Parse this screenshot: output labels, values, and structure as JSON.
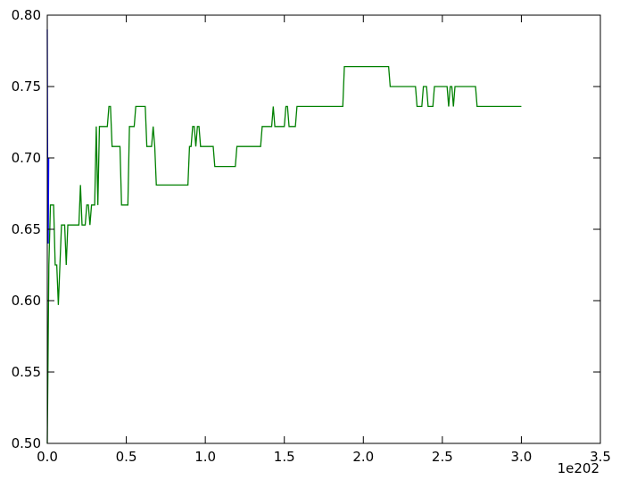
{
  "chart_data": {
    "type": "line",
    "title": "",
    "xlabel": "",
    "ylabel": "",
    "x_offset_label": "1e202",
    "xlim": [
      0.0,
      3.5
    ],
    "ylim": [
      0.5,
      0.8
    ],
    "x_ticks": [
      0.0,
      0.5,
      1.0,
      1.5,
      2.0,
      2.5,
      3.0,
      3.5
    ],
    "y_ticks": [
      0.5,
      0.55,
      0.6,
      0.65,
      0.7,
      0.75,
      0.8
    ],
    "x_tick_labels": [
      "0.0",
      "0.5",
      "1.0",
      "1.5",
      "2.0",
      "2.5",
      "3.0",
      "3.5"
    ],
    "y_tick_labels": [
      "0.50",
      "0.55",
      "0.60",
      "0.65",
      "0.70",
      "0.75",
      "0.80"
    ],
    "grid": false,
    "legend": "none",
    "series": [
      {
        "color": "#0000ff",
        "x": [
          0.0,
          0.003,
          0.006,
          0.009
        ],
        "y": [
          0.79,
          0.66,
          0.64,
          0.7
        ]
      },
      {
        "color": "#008000",
        "x": [
          0.0,
          0.01,
          0.02,
          0.03,
          0.04,
          0.05,
          0.06,
          0.07,
          0.08,
          0.09,
          0.1,
          0.11,
          0.12,
          0.13,
          0.14,
          0.15,
          0.2,
          0.21,
          0.22,
          0.23,
          0.24,
          0.25,
          0.26,
          0.27,
          0.28,
          0.29,
          0.3,
          0.31,
          0.32,
          0.33,
          0.34,
          0.35,
          0.38,
          0.39,
          0.4,
          0.41,
          0.42,
          0.46,
          0.47,
          0.51,
          0.52,
          0.55,
          0.56,
          0.62,
          0.63,
          0.66,
          0.67,
          0.68,
          0.69,
          0.89,
          0.9,
          0.91,
          0.92,
          0.93,
          0.94,
          0.95,
          0.96,
          0.97,
          1.05,
          1.06,
          1.19,
          1.2,
          1.35,
          1.36,
          1.41,
          1.42,
          1.43,
          1.44,
          1.5,
          1.51,
          1.52,
          1.53,
          1.57,
          1.58,
          1.87,
          1.88,
          2.16,
          2.17,
          2.33,
          2.34,
          2.37,
          2.38,
          2.4,
          2.41,
          2.44,
          2.45,
          2.53,
          2.54,
          2.55,
          2.56,
          2.57,
          2.58,
          2.6,
          2.61,
          2.71,
          2.72,
          3.0
        ],
        "y": [
          0.5,
          0.625,
          0.667,
          0.667,
          0.667,
          0.625,
          0.625,
          0.597,
          0.625,
          0.653,
          0.653,
          0.653,
          0.625,
          0.653,
          0.653,
          0.653,
          0.653,
          0.681,
          0.653,
          0.653,
          0.653,
          0.667,
          0.667,
          0.653,
          0.667,
          0.667,
          0.667,
          0.722,
          0.667,
          0.722,
          0.722,
          0.722,
          0.722,
          0.736,
          0.736,
          0.708,
          0.708,
          0.708,
          0.667,
          0.667,
          0.722,
          0.722,
          0.736,
          0.736,
          0.708,
          0.708,
          0.722,
          0.708,
          0.681,
          0.681,
          0.708,
          0.708,
          0.722,
          0.722,
          0.708,
          0.722,
          0.722,
          0.708,
          0.708,
          0.694,
          0.694,
          0.708,
          0.708,
          0.722,
          0.722,
          0.722,
          0.736,
          0.722,
          0.722,
          0.736,
          0.736,
          0.722,
          0.722,
          0.736,
          0.736,
          0.764,
          0.764,
          0.75,
          0.75,
          0.736,
          0.736,
          0.75,
          0.75,
          0.736,
          0.736,
          0.75,
          0.75,
          0.736,
          0.75,
          0.75,
          0.736,
          0.75,
          0.75,
          0.75,
          0.75,
          0.736,
          0.736
        ]
      }
    ]
  }
}
